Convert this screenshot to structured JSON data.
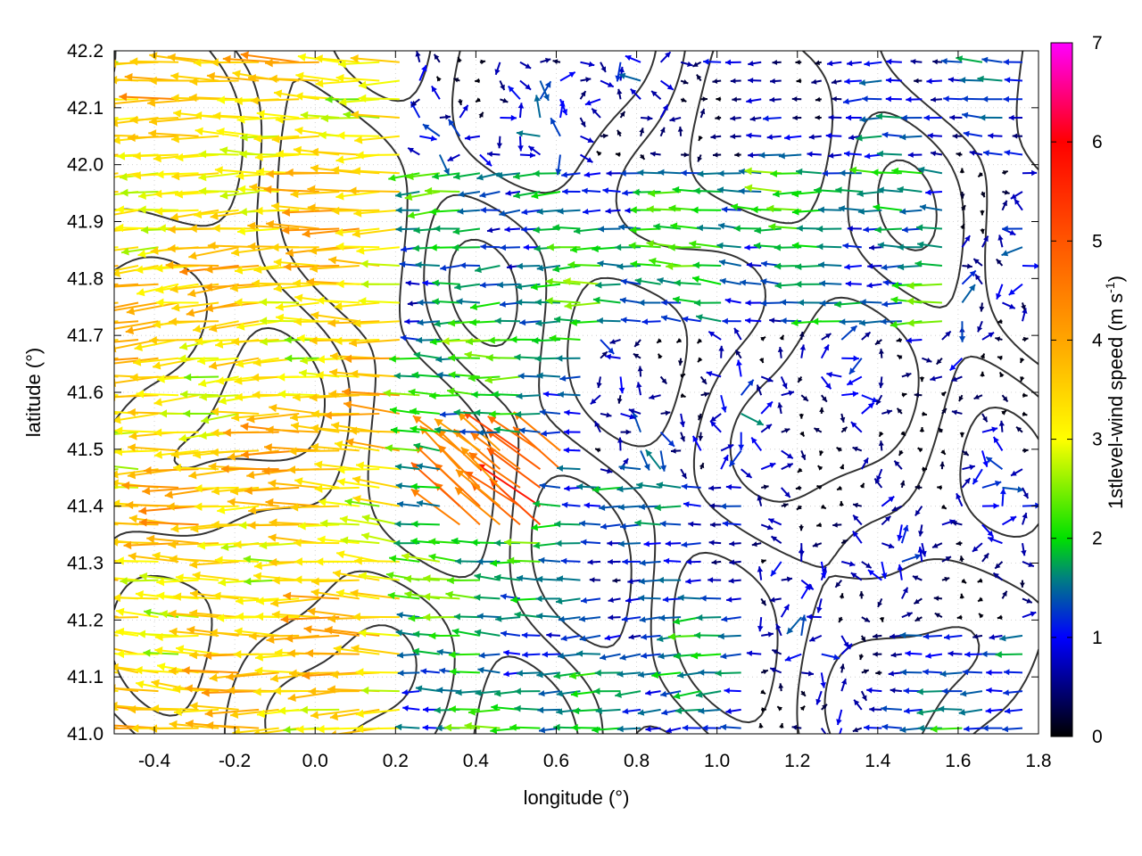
{
  "chart_data": {
    "type": "vector-field",
    "xlabel": "longitude (°)",
    "ylabel": "latitude (°)",
    "xlim": [
      -0.5,
      1.8
    ],
    "ylim": [
      41.0,
      42.2
    ],
    "x_ticks": [
      "-0.4",
      "-0.2",
      "0.0",
      "0.2",
      "0.4",
      "0.6",
      "0.8",
      "1.0",
      "1.2",
      "1.4",
      "1.6",
      "1.8"
    ],
    "x_tick_values": [
      -0.4,
      -0.2,
      0.0,
      0.2,
      0.4,
      0.6,
      0.8,
      1.0,
      1.2,
      1.4,
      1.6,
      1.8
    ],
    "y_ticks": [
      "41.0",
      "41.1",
      "41.2",
      "41.3",
      "41.4",
      "41.5",
      "41.6",
      "41.7",
      "41.8",
      "41.9",
      "42.0",
      "42.1",
      "42.2"
    ],
    "y_tick_values": [
      41.0,
      41.1,
      41.2,
      41.3,
      41.4,
      41.5,
      41.6,
      41.7,
      41.8,
      41.9,
      42.0,
      42.1,
      42.2
    ],
    "grid": "dotted",
    "colorbar": {
      "title_main": "1stlevel-wind speed (m s",
      "title_sup": "-1",
      "title_close": ")",
      "range": [
        0,
        7
      ],
      "ticks": [
        "0",
        "1",
        "2",
        "3",
        "4",
        "5",
        "6",
        "7"
      ],
      "tick_values": [
        0,
        1,
        2,
        3,
        4,
        5,
        6,
        7
      ],
      "stops": [
        {
          "value": 0,
          "color": "#000000"
        },
        {
          "value": 1,
          "color": "#0000ff"
        },
        {
          "value": 1.6,
          "color": "#008080"
        },
        {
          "value": 2,
          "color": "#00e000"
        },
        {
          "value": 3,
          "color": "#ffff00"
        },
        {
          "value": 4,
          "color": "#ffa500"
        },
        {
          "value": 5,
          "color": "#ff5500"
        },
        {
          "value": 6,
          "color": "#ff0000"
        },
        {
          "value": 7,
          "color": "#ff00ff"
        }
      ]
    },
    "wind_regions": [
      {
        "lon": [
          -0.5,
          0.25
        ],
        "lat": [
          41.0,
          42.2
        ],
        "speed": 3.4,
        "direction": "westward"
      },
      {
        "lon": [
          0.25,
          0.7
        ],
        "lat": [
          41.0,
          41.7
        ],
        "speed": 1.8,
        "direction": "westward"
      },
      {
        "lon": [
          0.35,
          0.65
        ],
        "lat": [
          41.35,
          41.5
        ],
        "speed": 4.8,
        "direction": "north-westward"
      },
      {
        "lon": [
          0.25,
          1.6
        ],
        "lat": [
          41.7,
          42.0
        ],
        "speed": 1.6,
        "direction": "westward"
      },
      {
        "lon": [
          0.6,
          1.1
        ],
        "lat": [
          41.0,
          41.45
        ],
        "speed": 1.3,
        "direction": "westward"
      },
      {
        "lon": [
          1.1,
          1.8
        ],
        "lat": [
          41.2,
          41.7
        ],
        "speed": 0.4,
        "direction": "variable"
      },
      {
        "lon": [
          1.4,
          1.8
        ],
        "lat": [
          41.0,
          41.2
        ],
        "speed": 1.2,
        "direction": "westward"
      },
      {
        "lon": [
          1.0,
          1.8
        ],
        "lat": [
          42.0,
          42.2
        ],
        "speed": 0.8,
        "direction": "westward"
      }
    ],
    "terrain_contours": "black elevation isolines over the domain"
  }
}
